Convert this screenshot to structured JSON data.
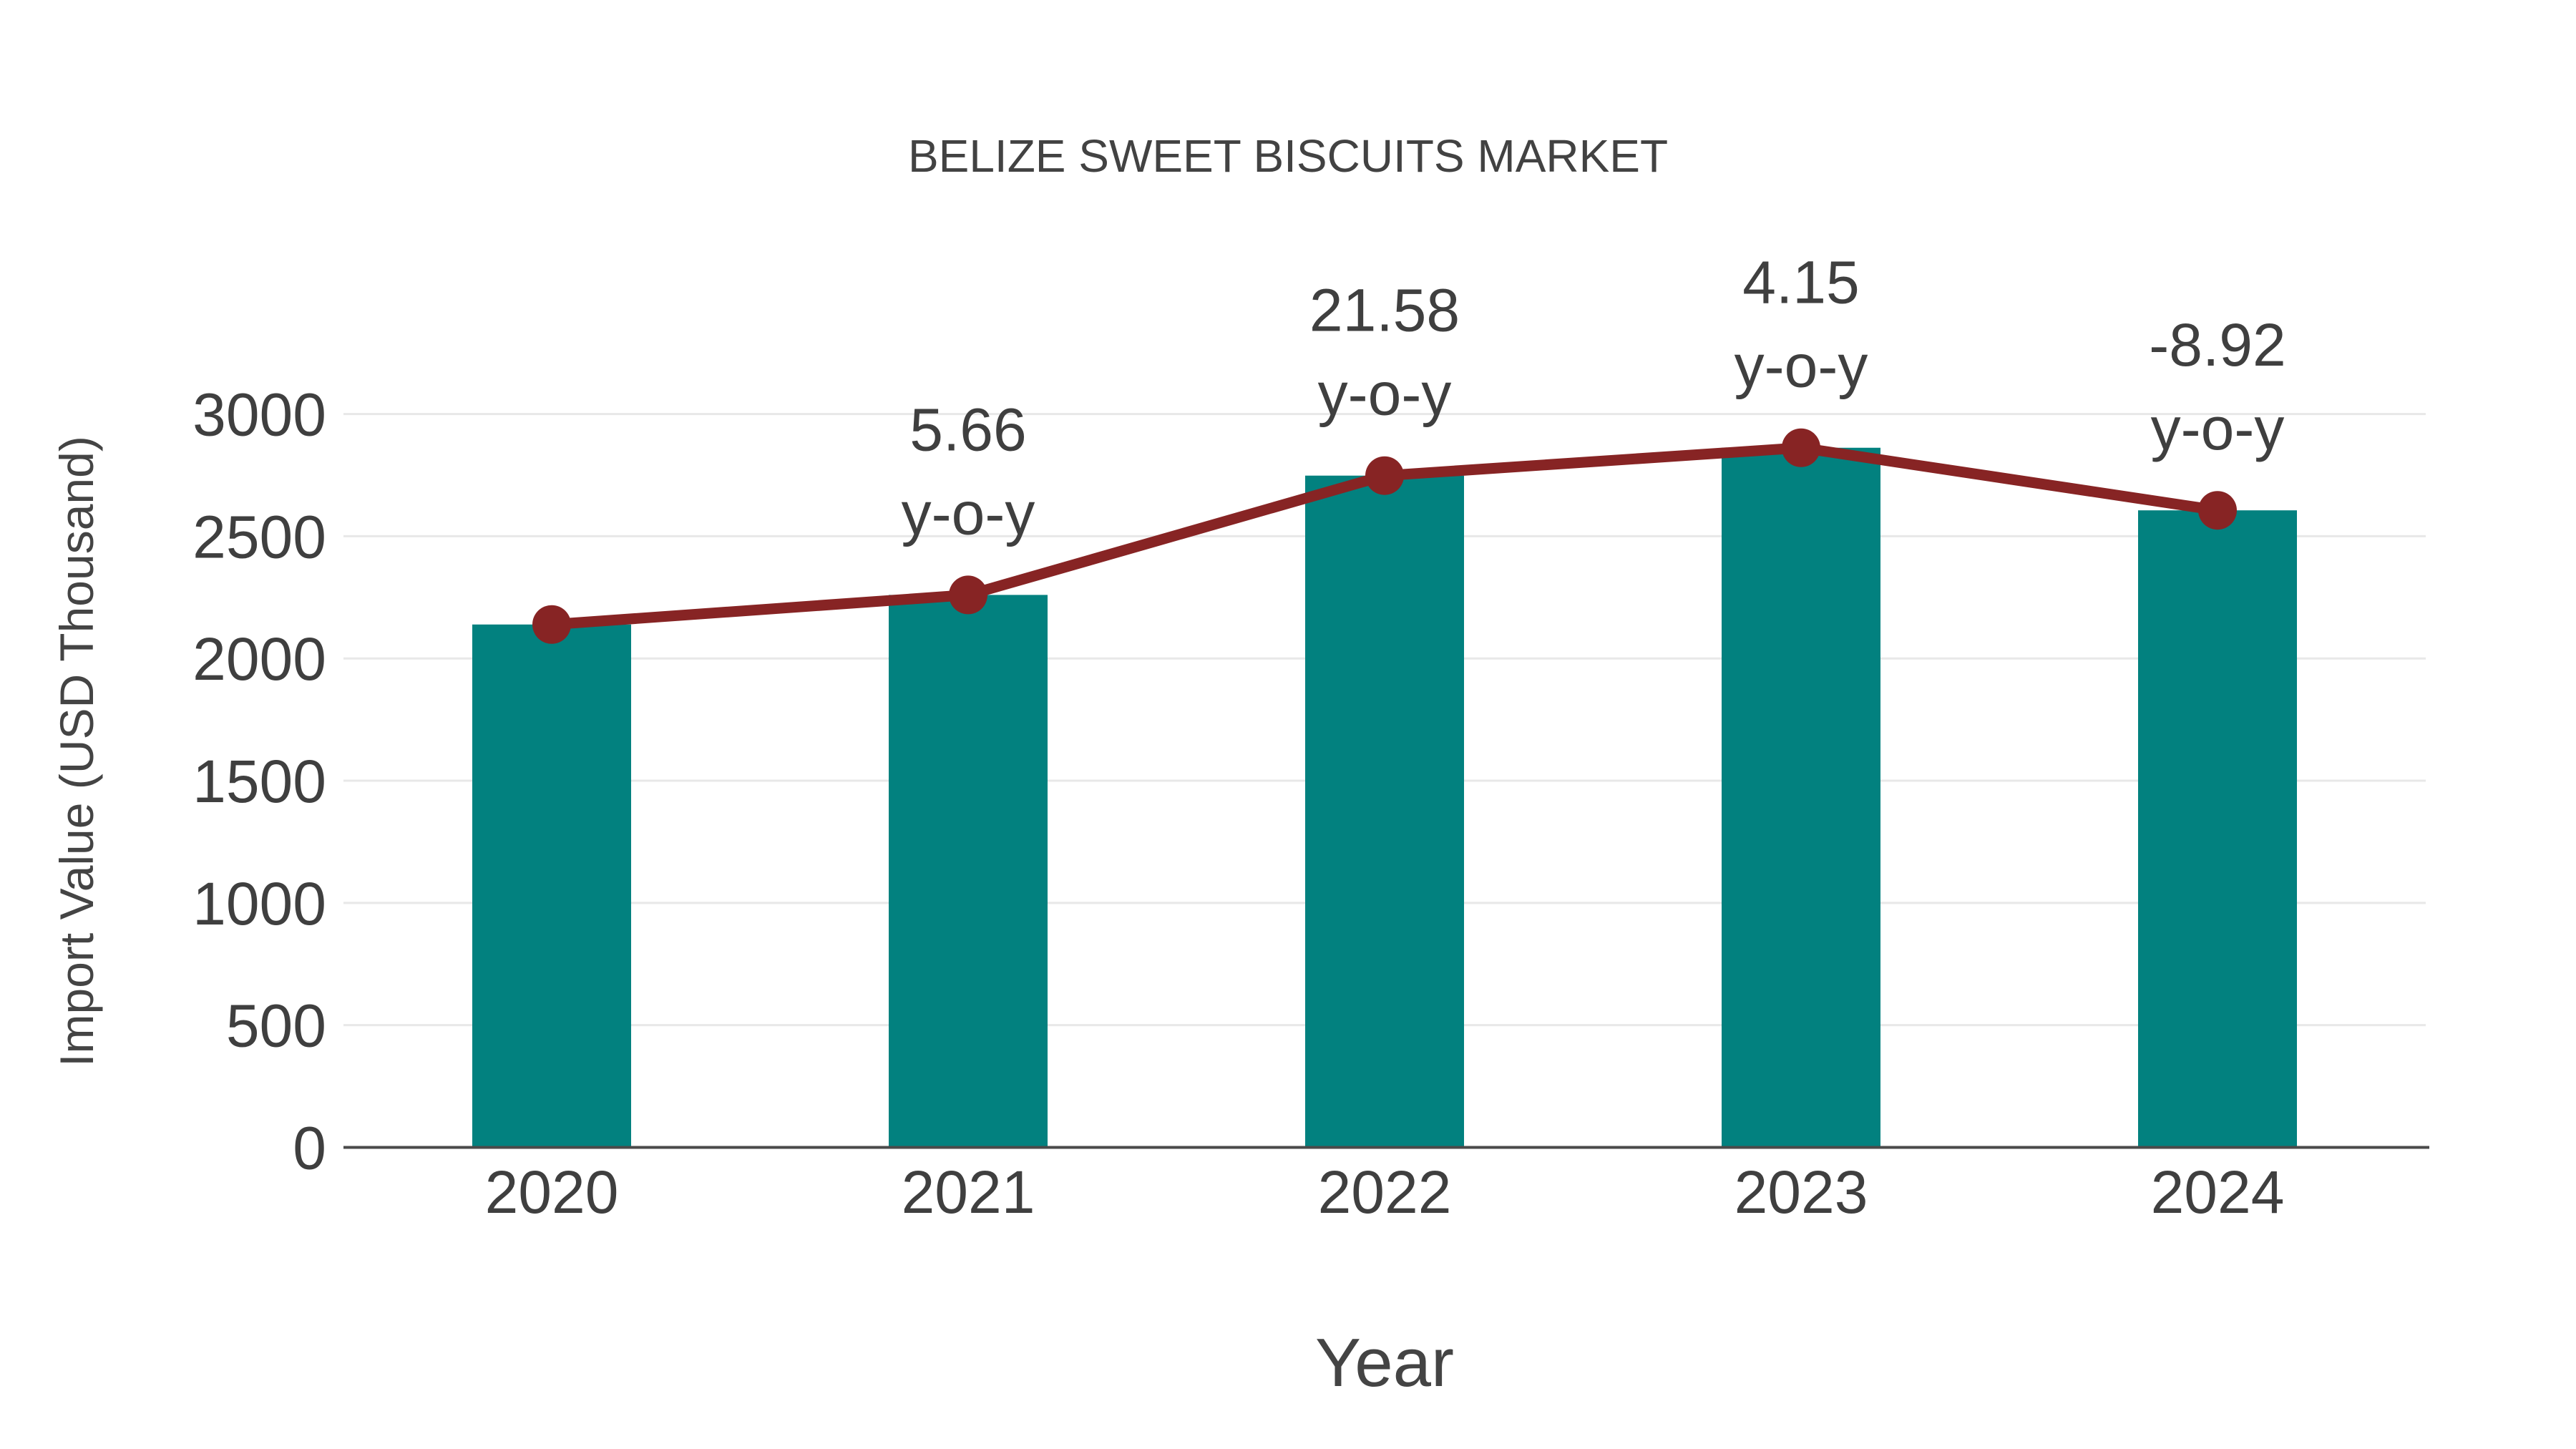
{
  "chart_data": {
    "type": "bar",
    "title": "BELIZE SWEET BISCUITS MARKET",
    "xlabel": "Year",
    "ylabel": "Import Value (USD Thousand)",
    "categories": [
      "2020",
      "2021",
      "2022",
      "2023",
      "2024"
    ],
    "values": [
      2139,
      2260,
      2748,
      2862,
      2606
    ],
    "line_overlay": {
      "name": "import-value-trend-line",
      "values": [
        2139,
        2260,
        2748,
        2862,
        2606
      ],
      "marker": "circle"
    },
    "annotations": [
      {
        "category": "2021",
        "line1": "5.66",
        "line2": "y-o-y"
      },
      {
        "category": "2022",
        "line1": "21.58",
        "line2": "y-o-y"
      },
      {
        "category": "2023",
        "line1": "4.15",
        "line2": "y-o-y"
      },
      {
        "category": "2024",
        "line1": "-8.92",
        "line2": "y-o-y"
      }
    ],
    "ylim": [
      0,
      3000
    ],
    "yticks": [
      0,
      500,
      1000,
      1500,
      2000,
      2500,
      3000
    ],
    "grid": true,
    "legend": "none",
    "colors": {
      "bar": "#02817F",
      "line": "#872424",
      "marker": "#872424",
      "tick_text": "#3F3F3F",
      "title_text": "#424242",
      "axis_line": "#4A4A4A",
      "gridline": "#E8E8E8",
      "background": "#FFFFFF"
    }
  }
}
